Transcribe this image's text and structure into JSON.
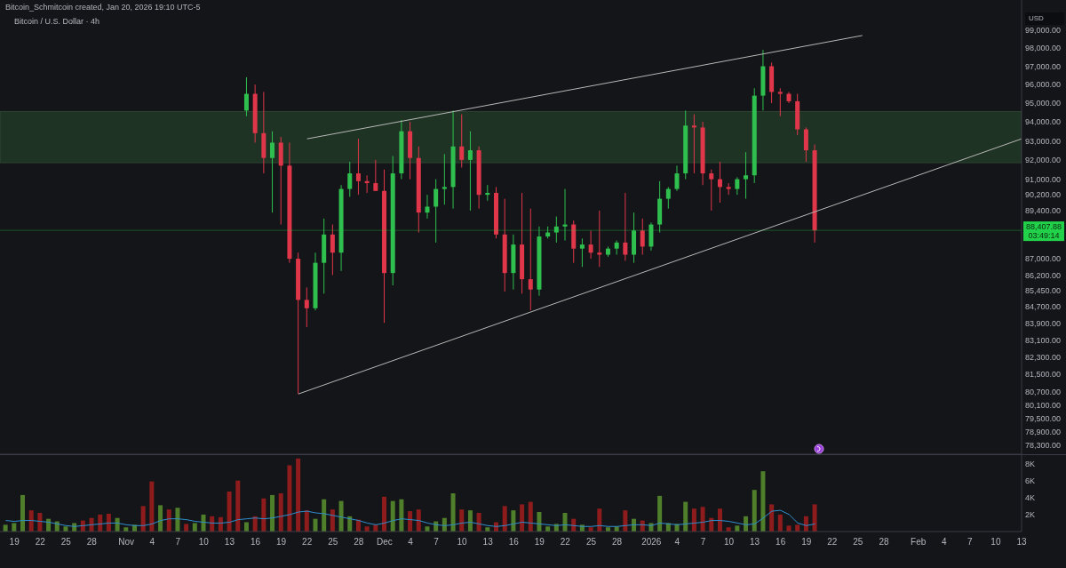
{
  "chart_data": [
    {
      "type": "candlestick",
      "title": "Bitcoin / U.S. Dollar · 4h",
      "ylabel": "USD",
      "annotations": [
        "Bitcoin_Schmitcoin created, Jan 20, 2026 19:10 UTC-5",
        "03:49:14"
      ],
      "x": [
        "2025-11-15",
        "2025-11-16",
        "2025-11-17",
        "2025-11-18",
        "2025-11-19",
        "2025-11-20",
        "2025-11-21",
        "2025-11-22",
        "2025-11-23",
        "2025-11-24",
        "2025-11-25",
        "2025-11-26",
        "2025-11-27",
        "2025-11-28",
        "2025-11-29",
        "2025-11-30",
        "2025-12-01",
        "2025-12-02",
        "2025-12-03",
        "2025-12-04",
        "2025-12-05",
        "2025-12-06",
        "2025-12-07",
        "2025-12-08",
        "2025-12-09",
        "2025-12-10",
        "2025-12-11",
        "2025-12-12",
        "2025-12-13",
        "2025-12-14",
        "2025-12-15",
        "2025-12-16",
        "2025-12-17",
        "2025-12-18",
        "2025-12-19",
        "2025-12-20",
        "2025-12-21",
        "2025-12-22",
        "2025-12-23",
        "2025-12-24",
        "2025-12-25",
        "2025-12-26",
        "2025-12-27",
        "2025-12-28",
        "2025-12-29",
        "2025-12-30",
        "2025-12-31",
        "2026-01-01",
        "2026-01-02",
        "2026-01-03",
        "2026-01-04",
        "2026-01-05",
        "2026-01-06",
        "2026-01-07",
        "2026-01-08",
        "2026-01-09",
        "2026-01-10",
        "2026-01-11",
        "2026-01-12",
        "2026-01-13",
        "2026-01-14",
        "2026-01-15",
        "2026-01-16",
        "2026-01-17",
        "2026-01-18",
        "2026-01-19",
        "2026-01-20"
      ],
      "ohlc": [
        [
          94600,
          96400,
          94300,
          95500
        ],
        [
          95500,
          96000,
          92900,
          93400
        ],
        [
          93400,
          95600,
          91300,
          92100
        ],
        [
          92100,
          93500,
          89300,
          92900
        ],
        [
          92900,
          93200,
          88700,
          91700
        ],
        [
          91700,
          92900,
          86800,
          87000
        ],
        [
          87000,
          87300,
          80600,
          85000
        ],
        [
          85000,
          85600,
          83700,
          84600
        ],
        [
          84600,
          87300,
          84500,
          86800
        ],
        [
          86800,
          89000,
          85300,
          88200
        ],
        [
          88200,
          88700,
          86200,
          87300
        ],
        [
          87300,
          90700,
          86400,
          90500
        ],
        [
          90500,
          91900,
          90100,
          91300
        ],
        [
          91300,
          93100,
          90200,
          90900
        ],
        [
          90900,
          91200,
          90300,
          90800
        ],
        [
          90800,
          92000,
          90400,
          90400
        ],
        [
          90400,
          91500,
          83900,
          86300
        ],
        [
          86300,
          92200,
          85700,
          91300
        ],
        [
          91300,
          94100,
          91000,
          93500
        ],
        [
          93500,
          94000,
          91000,
          92100
        ],
        [
          92100,
          92700,
          88300,
          89300
        ],
        [
          89300,
          90200,
          89000,
          89600
        ],
        [
          89600,
          91000,
          87800,
          90500
        ],
        [
          90500,
          92300,
          89700,
          90600
        ],
        [
          90600,
          94600,
          89500,
          92700
        ],
        [
          92700,
          94400,
          91600,
          92000
        ],
        [
          92000,
          93500,
          89400,
          92500
        ],
        [
          92500,
          92700,
          89500,
          90200
        ],
        [
          90200,
          90700,
          89900,
          90300
        ],
        [
          90300,
          90600,
          88000,
          88200
        ],
        [
          88200,
          90000,
          85400,
          86300
        ],
        [
          86300,
          88200,
          85500,
          87700
        ],
        [
          87700,
          90300,
          85300,
          86000
        ],
        [
          86000,
          89500,
          84500,
          85500
        ],
        [
          85500,
          88600,
          85200,
          88100
        ],
        [
          88100,
          88600,
          88000,
          88300
        ],
        [
          88300,
          89100,
          87800,
          88600
        ],
        [
          88600,
          90500,
          87900,
          88700
        ],
        [
          88700,
          88900,
          86800,
          87500
        ],
        [
          87500,
          88000,
          86600,
          87700
        ],
        [
          87700,
          88400,
          87000,
          87300
        ],
        [
          87300,
          89400,
          86600,
          87200
        ],
        [
          87200,
          87600,
          87100,
          87500
        ],
        [
          87500,
          87900,
          87200,
          87800
        ],
        [
          87800,
          90300,
          86900,
          87200
        ],
        [
          87200,
          89300,
          86800,
          88400
        ],
        [
          88400,
          89000,
          87200,
          87600
        ],
        [
          87600,
          88800,
          87400,
          88700
        ],
        [
          88700,
          90900,
          88300,
          90000
        ],
        [
          90000,
          90600,
          89500,
          90500
        ],
        [
          90500,
          91700,
          90400,
          91300
        ],
        [
          91300,
          94600,
          91000,
          93800
        ],
        [
          93800,
          94400,
          91300,
          93700
        ],
        [
          93700,
          94000,
          90700,
          91300
        ],
        [
          91300,
          91500,
          89400,
          91000
        ],
        [
          91000,
          91900,
          89800,
          90600
        ],
        [
          90600,
          90800,
          90200,
          90500
        ],
        [
          90500,
          91100,
          90200,
          91000
        ],
        [
          91000,
          92400,
          90000,
          91200
        ],
        [
          91200,
          95800,
          90800,
          95400
        ],
        [
          95400,
          97900,
          94600,
          97000
        ],
        [
          97000,
          97200,
          95000,
          95600
        ],
        [
          95600,
          95800,
          94300,
          95500
        ],
        [
          95500,
          95600,
          95000,
          95100
        ],
        [
          95100,
          95500,
          93300,
          93600
        ],
        [
          93600,
          93700,
          91900,
          92500
        ],
        [
          92500,
          92800,
          87800,
          88407.88
        ]
      ],
      "colors": [
        "#2fbf4f",
        "#e0364a",
        "#e0364a",
        "#2fbf4f",
        "#e0364a",
        "#e0364a",
        "#e0364a",
        "#e0364a",
        "#2fbf4f",
        "#2fbf4f",
        "#e0364a",
        "#2fbf4f",
        "#2fbf4f",
        "#e0364a",
        "#e0364a",
        "#e0364a",
        "#e0364a",
        "#2fbf4f",
        "#2fbf4f",
        "#e0364a",
        "#e0364a",
        "#2fbf4f",
        "#2fbf4f",
        "#2fbf4f",
        "#2fbf4f",
        "#e0364a",
        "#2fbf4f",
        "#e0364a",
        "#2fbf4f",
        "#e0364a",
        "#e0364a",
        "#2fbf4f",
        "#e0364a",
        "#e0364a",
        "#2fbf4f",
        "#2fbf4f",
        "#2fbf4f",
        "#2fbf4f",
        "#e0364a",
        "#2fbf4f",
        "#e0364a",
        "#e0364a",
        "#2fbf4f",
        "#2fbf4f",
        "#e0364a",
        "#2fbf4f",
        "#e0364a",
        "#2fbf4f",
        "#2fbf4f",
        "#2fbf4f",
        "#2fbf4f",
        "#2fbf4f",
        "#e0364a",
        "#e0364a",
        "#e0364a",
        "#e0364a",
        "#e0364a",
        "#2fbf4f",
        "#2fbf4f",
        "#2fbf4f",
        "#2fbf4f",
        "#e0364a",
        "#e0364a",
        "#e0364a",
        "#e0364a",
        "#e0364a",
        "#e0364a"
      ],
      "series": [
        {
          "type": "line",
          "x": [
            "2025-11-22",
            "2026-01-25T12:00"
          ],
          "values": [
            93100,
            98700
          ],
          "color": "#b8b8b8"
        },
        {
          "type": "line",
          "x": [
            "2025-11-21",
            "2026-02-13"
          ],
          "values": [
            80600,
            93100
          ],
          "color": "#b8b8b8"
        }
      ],
      "bands": [
        {
          "axis": "y",
          "from": 91850,
          "to": 94550,
          "color": "#1f3324"
        }
      ],
      "ref_lines": [
        {
          "axis": "y",
          "value": 88407.88,
          "label": "88,407.88",
          "color": "#22d14a"
        }
      ],
      "xlim": [
        "2025-10-17T08:00",
        "2026-02-13"
      ],
      "ylim": [
        77900,
        100700
      ],
      "log": true,
      "tick_labels": "y",
      "yticks": [
        {
          "value": 99000,
          "label": "99,000.00"
        },
        {
          "value": 98000,
          "label": "98,000.00"
        },
        {
          "value": 97000,
          "label": "97,000.00"
        },
        {
          "value": 96000,
          "label": "96,000.00"
        },
        {
          "value": 95000,
          "label": "95,000.00"
        },
        {
          "value": 94000,
          "label": "94,000.00"
        },
        {
          "value": 93000,
          "label": "93,000.00"
        },
        {
          "value": 92000,
          "label": "92,000.00"
        },
        {
          "value": 91000,
          "label": "91,000.00"
        },
        {
          "value": 90200,
          "label": "90,200.00"
        },
        {
          "value": 89400,
          "label": "89,400.00"
        },
        {
          "value": 87000,
          "label": "87,000.00"
        },
        {
          "value": 86200,
          "label": "86,200.00"
        },
        {
          "value": 85450,
          "label": "85,450.00"
        },
        {
          "value": 84700,
          "label": "84,700.00"
        },
        {
          "value": 83900,
          "label": "83,900.00"
        },
        {
          "value": 83100,
          "label": "83,100.00"
        },
        {
          "value": 82300,
          "label": "82,300.00"
        },
        {
          "value": 81500,
          "label": "81,500.00"
        },
        {
          "value": 80700,
          "label": "80,700.00"
        },
        {
          "value": 80100,
          "label": "80,100.00"
        },
        {
          "value": 79500,
          "label": "79,500.00"
        },
        {
          "value": 78900,
          "label": "78,900.00"
        },
        {
          "value": 78300,
          "label": "78,300.00"
        }
      ]
    },
    {
      "type": "bar",
      "x": [
        "2025-10-18",
        "2025-10-19",
        "2025-10-20",
        "2025-10-21",
        "2025-10-22",
        "2025-10-23",
        "2025-10-24",
        "2025-10-25",
        "2025-10-26",
        "2025-10-27",
        "2025-10-28",
        "2025-10-29",
        "2025-10-30",
        "2025-10-31",
        "2025-11-01",
        "2025-11-02",
        "2025-11-03",
        "2025-11-04",
        "2025-11-05",
        "2025-11-06",
        "2025-11-07",
        "2025-11-08",
        "2025-11-09",
        "2025-11-10",
        "2025-11-11",
        "2025-11-12",
        "2025-11-13",
        "2025-11-14",
        "2025-11-15",
        "2025-11-16",
        "2025-11-17",
        "2025-11-18",
        "2025-11-19",
        "2025-11-20",
        "2025-11-21",
        "2025-11-22",
        "2025-11-23",
        "2025-11-24",
        "2025-11-25",
        "2025-11-26",
        "2025-11-27",
        "2025-11-28",
        "2025-11-29",
        "2025-11-30",
        "2025-12-01",
        "2025-12-02",
        "2025-12-03",
        "2025-12-04",
        "2025-12-05",
        "2025-12-06",
        "2025-12-07",
        "2025-12-08",
        "2025-12-09",
        "2025-12-10",
        "2025-12-11",
        "2025-12-12",
        "2025-12-13",
        "2025-12-14",
        "2025-12-15",
        "2025-12-16",
        "2025-12-17",
        "2025-12-18",
        "2025-12-19",
        "2025-12-20",
        "2025-12-21",
        "2025-12-22",
        "2025-12-23",
        "2025-12-24",
        "2025-12-25",
        "2025-12-26",
        "2025-12-27",
        "2025-12-28",
        "2025-12-29",
        "2025-12-30",
        "2025-12-31",
        "2026-01-01",
        "2026-01-02",
        "2026-01-03",
        "2026-01-04",
        "2026-01-05",
        "2026-01-06",
        "2026-01-07",
        "2026-01-08",
        "2026-01-09",
        "2026-01-10",
        "2026-01-11",
        "2026-01-12",
        "2026-01-13",
        "2026-01-14",
        "2026-01-15",
        "2026-01-16",
        "2026-01-17",
        "2026-01-18",
        "2026-01-19",
        "2026-01-20"
      ],
      "series": [
        {
          "type": "bar",
          "values": [
            800,
            1000,
            4300,
            2500,
            2200,
            1500,
            1200,
            600,
            1000,
            1300,
            1600,
            2000,
            2100,
            1600,
            500,
            800,
            3000,
            5900,
            3100,
            2600,
            2800,
            900,
            1000,
            2000,
            1800,
            1700,
            4700,
            6000,
            1100,
            1800,
            3900,
            4300,
            4500,
            7800,
            8600,
            2500,
            1500,
            3800,
            2600,
            3600,
            1800,
            1400,
            600,
            800,
            4100,
            3600,
            3800,
            2400,
            2600,
            600,
            1200,
            1600,
            4500,
            2600,
            2500,
            2200,
            500,
            1100,
            3000,
            2500,
            3200,
            3500,
            2300,
            600,
            900,
            2200,
            1500,
            800,
            500,
            2700,
            500,
            600,
            2500,
            1500,
            1300,
            1000,
            4200,
            1000,
            900,
            3500,
            2700,
            2900,
            1600,
            2700,
            500,
            700,
            1800,
            4900,
            7100,
            3200,
            2000,
            700,
            800,
            1800,
            3200
          ],
          "colors": [
            "#4f7f2a",
            "#4f7f2a",
            "#4f7f2a",
            "#8e1c1c",
            "#8e1c1c",
            "#4f7f2a",
            "#4f7f2a",
            "#4f7f2a",
            "#4f7f2a",
            "#8e1c1c",
            "#8e1c1c",
            "#8e1c1c",
            "#8e1c1c",
            "#4f7f2a",
            "#4f7f2a",
            "#4f7f2a",
            "#8e1c1c",
            "#8e1c1c",
            "#4f7f2a",
            "#8e1c1c",
            "#4f7f2a",
            "#8e1c1c",
            "#4f7f2a",
            "#4f7f2a",
            "#8e1c1c",
            "#8e1c1c",
            "#8e1c1c",
            "#8e1c1c",
            "#4f7f2a",
            "#8e1c1c",
            "#8e1c1c",
            "#4f7f2a",
            "#8e1c1c",
            "#8e1c1c",
            "#8e1c1c",
            "#8e1c1c",
            "#4f7f2a",
            "#4f7f2a",
            "#8e1c1c",
            "#4f7f2a",
            "#4f7f2a",
            "#8e1c1c",
            "#8e1c1c",
            "#8e1c1c",
            "#8e1c1c",
            "#4f7f2a",
            "#4f7f2a",
            "#8e1c1c",
            "#8e1c1c",
            "#4f7f2a",
            "#4f7f2a",
            "#4f7f2a",
            "#4f7f2a",
            "#8e1c1c",
            "#4f7f2a",
            "#8e1c1c",
            "#4f7f2a",
            "#8e1c1c",
            "#8e1c1c",
            "#4f7f2a",
            "#8e1c1c",
            "#8e1c1c",
            "#4f7f2a",
            "#4f7f2a",
            "#4f7f2a",
            "#4f7f2a",
            "#8e1c1c",
            "#4f7f2a",
            "#8e1c1c",
            "#8e1c1c",
            "#4f7f2a",
            "#4f7f2a",
            "#8e1c1c",
            "#4f7f2a",
            "#8e1c1c",
            "#4f7f2a",
            "#4f7f2a",
            "#4f7f2a",
            "#4f7f2a",
            "#4f7f2a",
            "#8e1c1c",
            "#8e1c1c",
            "#8e1c1c",
            "#8e1c1c",
            "#8e1c1c",
            "#4f7f2a",
            "#4f7f2a",
            "#4f7f2a",
            "#4f7f2a",
            "#8e1c1c",
            "#8e1c1c",
            "#8e1c1c",
            "#8e1c1c",
            "#8e1c1c",
            "#8e1c1c"
          ]
        },
        {
          "type": "line",
          "color": "#2f8fd0",
          "values": [
            1300,
            1200,
            1300,
            1300,
            1200,
            1100,
            900,
            700,
            600,
            700,
            800,
            900,
            1000,
            1000,
            800,
            700,
            700,
            900,
            1300,
            1500,
            1500,
            1400,
            1200,
            1100,
            1000,
            1000,
            1100,
            1400,
            1500,
            1600,
            1500,
            1600,
            1800,
            2000,
            2300,
            2400,
            2200,
            2100,
            1900,
            1700,
            1500,
            1300,
            1000,
            800,
            1000,
            1300,
            1500,
            1400,
            1300,
            1000,
            800,
            700,
            800,
            1000,
            1100,
            900,
            700,
            600,
            700,
            900,
            1100,
            1000,
            900,
            800,
            700,
            800,
            700,
            600,
            600,
            700,
            600,
            600,
            700,
            800,
            800,
            700,
            1000,
            900,
            800,
            900,
            1000,
            1100,
            1300,
            1300,
            1200,
            1000,
            800,
            900,
            1600,
            2400,
            2500,
            2000,
            1000,
            700,
            900
          ]
        }
      ],
      "xlim": [
        "2025-10-17T08:00",
        "2026-02-13"
      ],
      "ylim": [
        0,
        9000
      ],
      "yticks": [
        {
          "value": 2000,
          "label": "2K"
        },
        {
          "value": 4000,
          "label": "4K"
        },
        {
          "value": 6000,
          "label": "6K"
        },
        {
          "value": 8000,
          "label": "8K"
        }
      ],
      "xticks": [
        {
          "value": "2025-10-19",
          "label": "19"
        },
        {
          "value": "2025-10-22",
          "label": "22"
        },
        {
          "value": "2025-10-25",
          "label": "25"
        },
        {
          "value": "2025-10-28",
          "label": "28"
        },
        {
          "value": "2025-11-01",
          "label": "Nov"
        },
        {
          "value": "2025-11-04",
          "label": "4"
        },
        {
          "value": "2025-11-07",
          "label": "7"
        },
        {
          "value": "2025-11-10",
          "label": "10"
        },
        {
          "value": "2025-11-13",
          "label": "13"
        },
        {
          "value": "2025-11-16",
          "label": "16"
        },
        {
          "value": "2025-11-19",
          "label": "19"
        },
        {
          "value": "2025-11-22",
          "label": "22"
        },
        {
          "value": "2025-11-25",
          "label": "25"
        },
        {
          "value": "2025-11-28",
          "label": "28"
        },
        {
          "value": "2025-12-01",
          "label": "Dec"
        },
        {
          "value": "2025-12-04",
          "label": "4"
        },
        {
          "value": "2025-12-07",
          "label": "7"
        },
        {
          "value": "2025-12-10",
          "label": "10"
        },
        {
          "value": "2025-12-13",
          "label": "13"
        },
        {
          "value": "2025-12-16",
          "label": "16"
        },
        {
          "value": "2025-12-19",
          "label": "19"
        },
        {
          "value": "2025-12-22",
          "label": "22"
        },
        {
          "value": "2025-12-25",
          "label": "25"
        },
        {
          "value": "2025-12-28",
          "label": "28"
        },
        {
          "value": "2026-01-01",
          "label": "2026"
        },
        {
          "value": "2026-01-04",
          "label": "4"
        },
        {
          "value": "2026-01-07",
          "label": "7"
        },
        {
          "value": "2026-01-10",
          "label": "10"
        },
        {
          "value": "2026-01-13",
          "label": "13"
        },
        {
          "value": "2026-01-16",
          "label": "16"
        },
        {
          "value": "2026-01-19",
          "label": "19"
        },
        {
          "value": "2026-01-22",
          "label": "22"
        },
        {
          "value": "2026-01-25",
          "label": "25"
        },
        {
          "value": "2026-01-28",
          "label": "28"
        },
        {
          "value": "2026-02-01",
          "label": "Feb"
        },
        {
          "value": "2026-02-04",
          "label": "4"
        },
        {
          "value": "2026-02-07",
          "label": "7"
        },
        {
          "value": "2026-02-10",
          "label": "10"
        },
        {
          "value": "2026-02-13",
          "label": "13"
        }
      ]
    }
  ]
}
